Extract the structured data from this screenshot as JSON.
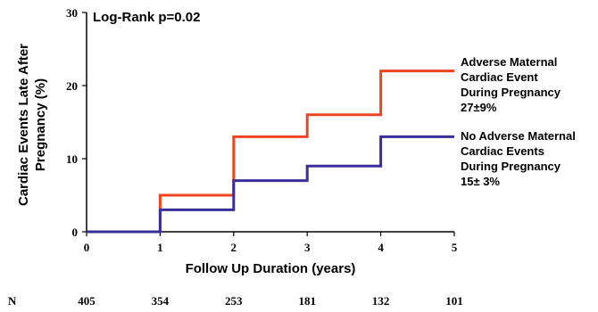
{
  "chart_data": {
    "type": "line",
    "step": true,
    "annotation": "Log-Rank p=0.02",
    "xlabel": "Follow Up Duration (years)",
    "ylabel_lines": [
      "Cardiac Events Late After",
      "Pregnancy (%)"
    ],
    "xlim": [
      0,
      5
    ],
    "ylim": [
      0,
      30
    ],
    "x_ticks": [
      0,
      1,
      2,
      3,
      4,
      5
    ],
    "y_ticks": [
      0,
      10,
      20,
      30
    ],
    "series": [
      {
        "color": "#ee4422",
        "x": [
          0,
          1,
          2,
          3,
          4,
          5
        ],
        "y": [
          0,
          5,
          13,
          16,
          22,
          22
        ],
        "label_lines": [
          "Adverse Maternal",
          "Cardiac Event",
          "During Pregnancy",
          "27±9%"
        ]
      },
      {
        "color": "#3a2f9a",
        "x": [
          0,
          1,
          2,
          3,
          4,
          5
        ],
        "y": [
          0,
          3,
          7,
          9,
          13,
          13
        ],
        "label_lines": [
          "No Adverse Maternal",
          "Cardiac Events",
          "During Pregnancy",
          "15± 3%"
        ]
      }
    ],
    "at_risk": {
      "label": "N",
      "values": [
        "405",
        "354",
        "253",
        "181",
        "132",
        "101"
      ]
    }
  }
}
